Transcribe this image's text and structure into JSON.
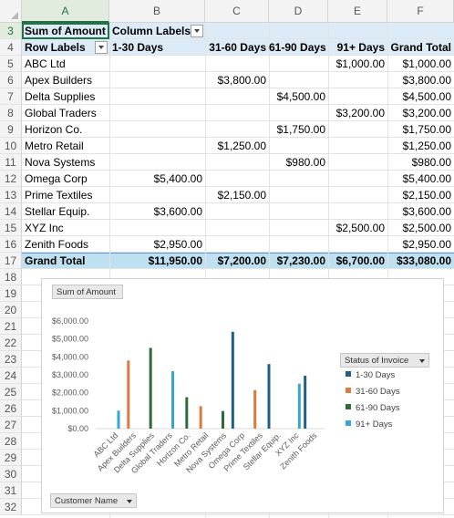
{
  "columns": [
    "A",
    "B",
    "C",
    "D",
    "E",
    "F"
  ],
  "rows": [
    "3",
    "4",
    "5",
    "6",
    "7",
    "8",
    "9",
    "10",
    "11",
    "12",
    "13",
    "14",
    "15",
    "16",
    "17",
    "18",
    "19",
    "20",
    "21",
    "22",
    "23",
    "24",
    "25",
    "26",
    "27",
    "28",
    "29",
    "30",
    "31",
    "32"
  ],
  "pivot": {
    "values_label": "Sum of Amount",
    "column_labels": "Column Labels",
    "row_labels": "Row Labels",
    "headers": [
      "1-30 Days",
      "31-60 Days",
      "61-90 Days",
      "91+ Days",
      "Grand Total"
    ],
    "body": [
      {
        "name": "ABC Ltd",
        "c1": "",
        "c2": "",
        "c3": "",
        "c4": "$1,000.00",
        "total": "$1,000.00"
      },
      {
        "name": "Apex Builders",
        "c1": "",
        "c2": "$3,800.00",
        "c3": "",
        "c4": "",
        "total": "$3,800.00"
      },
      {
        "name": "Delta Supplies",
        "c1": "",
        "c2": "",
        "c3": "$4,500.00",
        "c4": "",
        "total": "$4,500.00"
      },
      {
        "name": "Global Traders",
        "c1": "",
        "c2": "",
        "c3": "",
        "c4": "$3,200.00",
        "total": "$3,200.00"
      },
      {
        "name": "Horizon Co.",
        "c1": "",
        "c2": "",
        "c3": "$1,750.00",
        "c4": "",
        "total": "$1,750.00"
      },
      {
        "name": "Metro Retail",
        "c1": "",
        "c2": "$1,250.00",
        "c3": "",
        "c4": "",
        "total": "$1,250.00"
      },
      {
        "name": "Nova Systems",
        "c1": "",
        "c2": "",
        "c3": "$980.00",
        "c4": "",
        "total": "$980.00"
      },
      {
        "name": "Omega Corp",
        "c1": "$5,400.00",
        "c2": "",
        "c3": "",
        "c4": "",
        "total": "$5,400.00"
      },
      {
        "name": "Prime Textiles",
        "c1": "",
        "c2": "$2,150.00",
        "c3": "",
        "c4": "",
        "total": "$2,150.00"
      },
      {
        "name": "Stellar Equip.",
        "c1": "$3,600.00",
        "c2": "",
        "c3": "",
        "c4": "",
        "total": "$3,600.00"
      },
      {
        "name": "XYZ Inc",
        "c1": "",
        "c2": "",
        "c3": "",
        "c4": "$2,500.00",
        "total": "$2,500.00"
      },
      {
        "name": "Zenith Foods",
        "c1": "$2,950.00",
        "c2": "",
        "c3": "",
        "c4": "",
        "total": "$2,950.00"
      }
    ],
    "grand_total": {
      "name": "Grand Total",
      "c1": "$11,950.00",
      "c2": "$7,200.00",
      "c3": "$7,230.00",
      "c4": "$6,700.00",
      "total": "$33,080.00"
    }
  },
  "chart_data": {
    "type": "bar",
    "title": "Sum of Amount",
    "legend_title": "Status of Invoice",
    "axis_field": "Customer Name",
    "categories": [
      "ABC Ltd",
      "Apex Builders",
      "Delta Supplies",
      "Global Traders",
      "Horizon Co.",
      "Metro Retail",
      "Nova Systems",
      "Omega Corp",
      "Prime Textiles",
      "Stellar Equip.",
      "XYZ Inc",
      "Zenith Foods"
    ],
    "series": [
      {
        "name": "1-30 Days",
        "color": "#1f5f86",
        "values": [
          0,
          0,
          0,
          0,
          0,
          0,
          0,
          5400,
          0,
          3600,
          0,
          2950
        ]
      },
      {
        "name": "31-60 Days",
        "color": "#e07a3c",
        "values": [
          0,
          3800,
          0,
          0,
          0,
          1250,
          0,
          0,
          2150,
          0,
          0,
          0
        ]
      },
      {
        "name": "61-90 Days",
        "color": "#2e6b36",
        "values": [
          0,
          0,
          4500,
          0,
          1750,
          0,
          980,
          0,
          0,
          0,
          0,
          0
        ]
      },
      {
        "name": "91+ Days",
        "color": "#35a6d6",
        "values": [
          1000,
          0,
          0,
          3200,
          0,
          0,
          0,
          0,
          0,
          0,
          2500,
          0
        ]
      }
    ],
    "yticks": [
      "$0.00",
      "$1,000.00",
      "$2,000.00",
      "$3,000.00",
      "$4,000.00",
      "$5,000.00",
      "$6,000.00"
    ],
    "ylim": [
      0,
      6000
    ],
    "grid": false,
    "legend_position": "right"
  }
}
